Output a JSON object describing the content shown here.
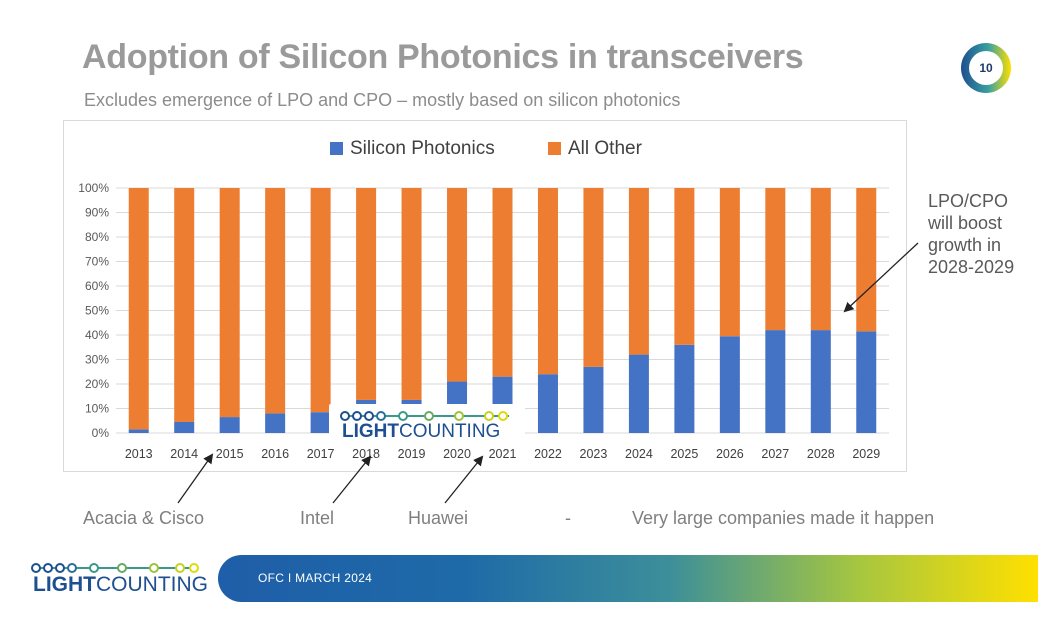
{
  "slide": {
    "title": "Adoption of Silicon Photonics in transceivers",
    "subtitle": "Excludes emergence of LPO and CPO – mostly based on silicon photonics",
    "page_number": "10"
  },
  "annotation": {
    "text": "LPO/CPO will boost growth in 2028-2029"
  },
  "bottom_labels": {
    "acacia_cisco": "Acacia & Cisco",
    "intel": "Intel",
    "huawei": "Huawei",
    "dash": "-",
    "companies": "Very large companies made it happen"
  },
  "footer": {
    "event": "OFC  I  MARCH 2024"
  },
  "logo": {
    "light": "LIGHT",
    "counting": "COUNTING"
  },
  "colors": {
    "silicon_photonics": "#4472c4",
    "all_other": "#ed7d31",
    "logo_blue": "#1d4f91",
    "logo_green": "#9ec23a",
    "logo_teal": "#3a9a8a"
  },
  "chart_data": {
    "type": "bar",
    "stacked": true,
    "categories": [
      "2013",
      "2014",
      "2015",
      "2016",
      "2017",
      "2018",
      "2019",
      "2020",
      "2021",
      "2022",
      "2023",
      "2024",
      "2025",
      "2026",
      "2027",
      "2028",
      "2029"
    ],
    "series": [
      {
        "name": "Silicon Photonics",
        "values": [
          1.5,
          4.5,
          6.5,
          8,
          8.5,
          13.5,
          13.5,
          21,
          23,
          24,
          27,
          32,
          36,
          39.5,
          42,
          42,
          41.5
        ]
      },
      {
        "name": "All Other",
        "values": [
          98.5,
          95.5,
          93.5,
          92,
          91.5,
          86.5,
          86.5,
          79,
          77,
          76,
          73,
          68,
          64,
          60.5,
          58,
          58,
          58.5
        ]
      }
    ],
    "ylim": [
      0,
      100
    ],
    "yticks": [
      "0%",
      "10%",
      "20%",
      "30%",
      "40%",
      "50%",
      "60%",
      "70%",
      "80%",
      "90%",
      "100%"
    ],
    "grid": true,
    "legend_position": "top"
  }
}
